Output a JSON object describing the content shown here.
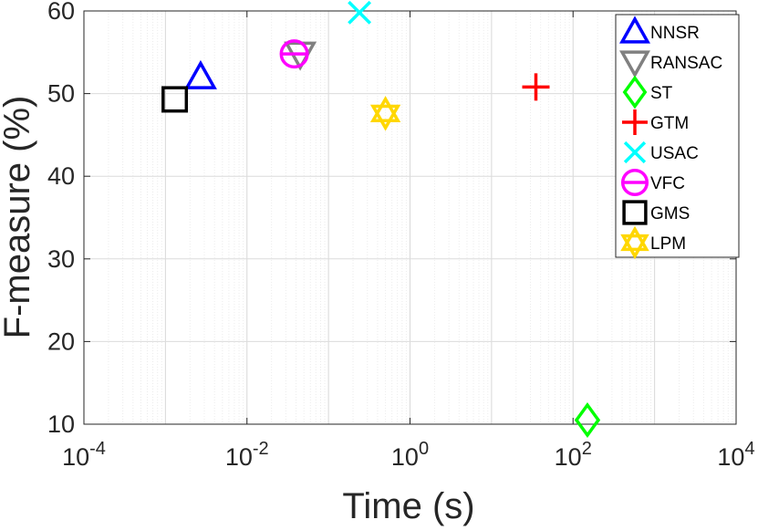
{
  "chart_data": {
    "type": "scatter",
    "title": "",
    "xlabel": "Time (s)",
    "ylabel": "F-measure (%)",
    "xscale": "log",
    "xlim": [
      0.0001,
      10000
    ],
    "ylim": [
      10,
      60
    ],
    "grid": true,
    "legend_position": "top-right",
    "x_ticks": [
      {
        "base": "10",
        "exp": "-4"
      },
      {
        "base": "10",
        "exp": "-2"
      },
      {
        "base": "10",
        "exp": "0"
      },
      {
        "base": "10",
        "exp": "2"
      },
      {
        "base": "10",
        "exp": "4"
      }
    ],
    "y_ticks": [
      "10",
      "20",
      "30",
      "40",
      "50",
      "60"
    ],
    "series": [
      {
        "name": "NNSR",
        "marker": "triangle-up",
        "color": "#0000FF",
        "x": 0.0027,
        "y": 52.0
      },
      {
        "name": "RANSAC",
        "marker": "triangle-down",
        "color": "#808080",
        "x": 0.045,
        "y": 54.8
      },
      {
        "name": "ST",
        "marker": "diamond",
        "color": "#00FF00",
        "x": 150,
        "y": 10.5
      },
      {
        "name": "GTM",
        "marker": "plus",
        "color": "#FF0000",
        "x": 35,
        "y": 50.8
      },
      {
        "name": "USAC",
        "marker": "cross",
        "color": "#00FFFF",
        "x": 0.24,
        "y": 59.8
      },
      {
        "name": "VFC",
        "marker": "circle-line",
        "color": "#FF00FF",
        "x": 0.038,
        "y": 54.8
      },
      {
        "name": "GMS",
        "marker": "square",
        "color": "#000000",
        "x": 0.0013,
        "y": 49.3
      },
      {
        "name": "LPM",
        "marker": "hexagram",
        "color": "#FFD700",
        "x": 0.5,
        "y": 47.6
      }
    ]
  }
}
